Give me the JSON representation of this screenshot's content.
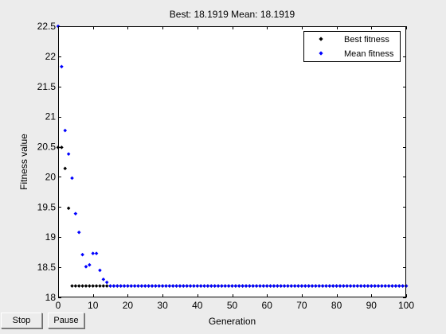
{
  "chart_data": {
    "type": "scatter",
    "title": "Best: 18.1919 Mean: 18.1919",
    "xlabel": "Generation",
    "ylabel": "Fitness value",
    "xlim": [
      0,
      100
    ],
    "ylim": [
      18,
      22.5
    ],
    "xticks": [
      0,
      10,
      20,
      30,
      40,
      50,
      60,
      70,
      80,
      90,
      100
    ],
    "yticks": [
      18,
      18.5,
      19,
      19.5,
      20,
      20.5,
      21,
      21.5,
      22,
      22.5
    ],
    "grid": false,
    "legend_position": "top-right",
    "series": [
      {
        "name": "Best fitness",
        "color": "#000000",
        "marker": "diamond",
        "x": [
          0,
          1,
          2,
          3,
          4,
          5,
          6,
          7,
          8,
          9,
          10,
          11,
          12,
          13,
          14,
          15,
          16,
          17,
          18,
          19,
          20,
          21,
          22,
          23,
          24,
          25,
          26,
          27,
          28,
          29,
          30,
          31,
          32,
          33,
          34,
          35,
          36,
          37,
          38,
          39,
          40,
          41,
          42,
          43,
          44,
          45,
          46,
          47,
          48,
          49,
          50,
          51,
          52,
          53,
          54,
          55,
          56,
          57,
          58,
          59,
          60,
          61,
          62,
          63,
          64,
          65,
          66,
          67,
          68,
          69,
          70,
          71,
          72,
          73,
          74,
          75,
          76,
          77,
          78,
          79,
          80,
          81,
          82,
          83,
          84,
          85,
          86,
          87,
          88,
          89,
          90,
          91,
          92,
          93,
          94,
          95,
          96,
          97,
          98,
          99,
          100
        ],
        "y": [
          20.49,
          20.49,
          20.14,
          19.48,
          18.19,
          18.19,
          18.19,
          18.19,
          18.19,
          18.19,
          18.19,
          18.19,
          18.19,
          18.19,
          18.19,
          18.19,
          18.19,
          18.19,
          18.19,
          18.19,
          18.19,
          18.19,
          18.19,
          18.19,
          18.19,
          18.19,
          18.19,
          18.19,
          18.19,
          18.19,
          18.19,
          18.19,
          18.19,
          18.19,
          18.19,
          18.19,
          18.19,
          18.19,
          18.19,
          18.19,
          18.19,
          18.19,
          18.19,
          18.19,
          18.19,
          18.19,
          18.19,
          18.19,
          18.19,
          18.19,
          18.19,
          18.19,
          18.19,
          18.19,
          18.19,
          18.19,
          18.19,
          18.19,
          18.19,
          18.19,
          18.19,
          18.19,
          18.19,
          18.19,
          18.19,
          18.19,
          18.19,
          18.19,
          18.19,
          18.19,
          18.19,
          18.19,
          18.19,
          18.19,
          18.19,
          18.19,
          18.19,
          18.19,
          18.19,
          18.19,
          18.19,
          18.19,
          18.19,
          18.19,
          18.19,
          18.19,
          18.19,
          18.19,
          18.19,
          18.19,
          18.19,
          18.19,
          18.19,
          18.19,
          18.19,
          18.19,
          18.19,
          18.19,
          18.19,
          18.19,
          18.19
        ]
      },
      {
        "name": "Mean fitness",
        "color": "#0000ff",
        "marker": "diamond",
        "x": [
          0,
          1,
          2,
          3,
          4,
          5,
          6,
          7,
          8,
          9,
          10,
          11,
          12,
          13,
          14,
          15,
          16,
          17,
          18,
          19,
          20,
          21,
          22,
          23,
          24,
          25,
          26,
          27,
          28,
          29,
          30,
          31,
          32,
          33,
          34,
          35,
          36,
          37,
          38,
          39,
          40,
          41,
          42,
          43,
          44,
          45,
          46,
          47,
          48,
          49,
          50,
          51,
          52,
          53,
          54,
          55,
          56,
          57,
          58,
          59,
          60,
          61,
          62,
          63,
          64,
          65,
          66,
          67,
          68,
          69,
          70,
          71,
          72,
          73,
          74,
          75,
          76,
          77,
          78,
          79,
          80,
          81,
          82,
          83,
          84,
          85,
          86,
          87,
          88,
          89,
          90,
          91,
          92,
          93,
          94,
          95,
          96,
          97,
          98,
          99,
          100
        ],
        "y": [
          22.5,
          21.83,
          20.77,
          20.38,
          19.98,
          19.39,
          19.08,
          18.71,
          18.51,
          18.54,
          18.73,
          18.73,
          18.45,
          18.3,
          18.25,
          18.19,
          18.19,
          18.19,
          18.19,
          18.19,
          18.19,
          18.19,
          18.19,
          18.19,
          18.19,
          18.19,
          18.19,
          18.19,
          18.19,
          18.19,
          18.19,
          18.19,
          18.19,
          18.19,
          18.19,
          18.19,
          18.19,
          18.19,
          18.19,
          18.19,
          18.19,
          18.19,
          18.19,
          18.19,
          18.19,
          18.19,
          18.19,
          18.19,
          18.19,
          18.19,
          18.19,
          18.19,
          18.19,
          18.19,
          18.19,
          18.19,
          18.19,
          18.19,
          18.19,
          18.19,
          18.19,
          18.19,
          18.19,
          18.19,
          18.19,
          18.19,
          18.19,
          18.19,
          18.19,
          18.19,
          18.19,
          18.19,
          18.19,
          18.19,
          18.19,
          18.19,
          18.19,
          18.19,
          18.19,
          18.19,
          18.19,
          18.19,
          18.19,
          18.19,
          18.19,
          18.19,
          18.19,
          18.19,
          18.19,
          18.19,
          18.19,
          18.19,
          18.19,
          18.19,
          18.19,
          18.19,
          18.19,
          18.19,
          18.19,
          18.19,
          18.19
        ]
      }
    ]
  },
  "controls": {
    "stop_label": "Stop",
    "pause_label": "Pause"
  }
}
